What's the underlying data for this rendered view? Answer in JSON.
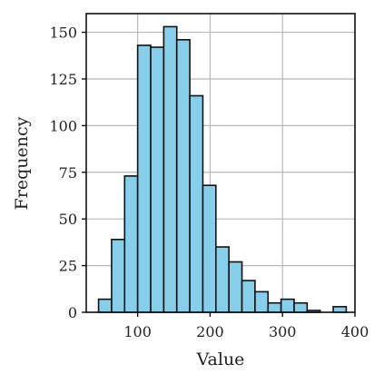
{
  "chart_data": {
    "type": "bar",
    "subtype": "histogram",
    "xlabel": "Value",
    "ylabel": "Frequency",
    "xlim": [
      29,
      400
    ],
    "ylim": [
      0,
      160
    ],
    "x_ticks": [
      100,
      200,
      300,
      400
    ],
    "y_ticks": [
      0,
      25,
      50,
      75,
      100,
      125,
      150
    ],
    "grid": true,
    "bar_color": "#87ceeb",
    "edge_color": "#111111",
    "bins": [
      {
        "start": 46,
        "end": 64,
        "count": 7
      },
      {
        "start": 64,
        "end": 82,
        "count": 39
      },
      {
        "start": 82,
        "end": 100,
        "count": 73
      },
      {
        "start": 100,
        "end": 118,
        "count": 143
      },
      {
        "start": 118,
        "end": 136,
        "count": 142
      },
      {
        "start": 136,
        "end": 154,
        "count": 153
      },
      {
        "start": 154,
        "end": 172,
        "count": 146
      },
      {
        "start": 172,
        "end": 190,
        "count": 116
      },
      {
        "start": 190,
        "end": 208,
        "count": 68
      },
      {
        "start": 208,
        "end": 226,
        "count": 35
      },
      {
        "start": 226,
        "end": 244,
        "count": 27
      },
      {
        "start": 244,
        "end": 262,
        "count": 17
      },
      {
        "start": 262,
        "end": 280,
        "count": 11
      },
      {
        "start": 280,
        "end": 298,
        "count": 5
      },
      {
        "start": 298,
        "end": 316,
        "count": 7
      },
      {
        "start": 316,
        "end": 334,
        "count": 5
      },
      {
        "start": 334,
        "end": 352,
        "count": 1
      },
      {
        "start": 352,
        "end": 370,
        "count": 0
      },
      {
        "start": 370,
        "end": 388,
        "count": 3
      }
    ]
  }
}
